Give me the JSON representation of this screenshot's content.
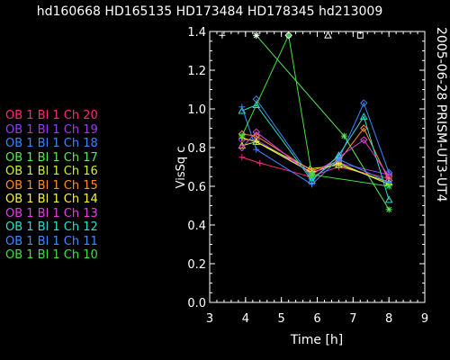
{
  "chart_data": {
    "type": "scatter",
    "title": "hd160668 HD165135 HD173484 HD178345 hd213009",
    "xlabel": "Time [h]",
    "ylabel": "VisSq c",
    "side_label": "2005-06-28 PRISM-UT3-UT4",
    "xlim": [
      3,
      9
    ],
    "ylim": [
      0,
      1.4
    ],
    "xticks": [
      "3",
      "4",
      "5",
      "6",
      "7",
      "8",
      "9"
    ],
    "yticks": [
      "0.0",
      "0.2",
      "0.4",
      "0.6",
      "0.8",
      "1.0",
      "1.2",
      "1.4"
    ],
    "grid": false,
    "legend_position": "left",
    "legend": [
      {
        "label": "OB 1 Bl 1 Ch 20",
        "color": "#ff2a78"
      },
      {
        "label": "OB 1 Bl 1 Ch 19",
        "color": "#9a3cf0"
      },
      {
        "label": "OB 1 Bl 1 Ch 18",
        "color": "#3a86ff"
      },
      {
        "label": "OB 1 Bl 1 Ch 17",
        "color": "#5ce65c"
      },
      {
        "label": "OB 1 Bl 1 Ch 16",
        "color": "#c8f03c"
      },
      {
        "label": "OB 1 Bl 1 Ch 15",
        "color": "#ff8c2a"
      },
      {
        "label": "OB 1 Bl 1 Ch 14",
        "color": "#f5f532"
      },
      {
        "label": "OB 1 Bl 1 Ch 13",
        "color": "#e040e0"
      },
      {
        "label": "OB 1 Bl 1 Ch 12",
        "color": "#2ae0c8"
      },
      {
        "label": "OB 1 Bl 1 Ch 11",
        "color": "#3c8cff"
      },
      {
        "label": "OB 1 Bl 1 Ch 10",
        "color": "#40e040"
      }
    ],
    "top_markers": [
      {
        "x": 3.35,
        "y": 1.38,
        "symbol": "+",
        "color": "#ffffff"
      },
      {
        "x": 4.3,
        "y": 1.38,
        "symbol": "*",
        "color": "#ffffff"
      },
      {
        "x": 5.2,
        "y": 1.38,
        "symbol": "diamond",
        "color": "#ffffff"
      },
      {
        "x": 6.3,
        "y": 1.38,
        "symbol": "triangle",
        "color": "#ffffff"
      },
      {
        "x": 7.2,
        "y": 1.38,
        "symbol": "square",
        "color": "#ffffff"
      }
    ],
    "series": [
      {
        "color": "#ff2a78",
        "symbol": "+",
        "x": [
          3.9,
          4.4,
          5.8,
          6.6,
          8.0
        ],
        "y": [
          0.75,
          0.72,
          0.65,
          0.7,
          0.64
        ]
      },
      {
        "color": "#9a3cf0",
        "symbol": "diamond",
        "x": [
          3.9,
          4.3,
          5.85,
          6.6,
          8.0
        ],
        "y": [
          0.84,
          0.84,
          0.67,
          0.72,
          0.66
        ]
      },
      {
        "color": "#3a86ff",
        "symbol": "diamond",
        "x": [
          4.3,
          5.85,
          6.6,
          7.3,
          8.0
        ],
        "y": [
          1.05,
          0.64,
          0.74,
          1.03,
          0.67
        ]
      },
      {
        "color": "#5ce65c",
        "symbol": "*",
        "x": [
          4.3,
          6.75,
          8.0
        ],
        "y": [
          1.38,
          0.86,
          0.48
        ]
      },
      {
        "color": "#c8f03c",
        "symbol": "triangle",
        "x": [
          3.9,
          4.3,
          5.8,
          6.6,
          8.0
        ],
        "y": [
          0.81,
          0.83,
          0.69,
          0.71,
          0.62
        ]
      },
      {
        "color": "#ff8c2a",
        "symbol": "diamond",
        "x": [
          3.9,
          4.3,
          5.85,
          6.6,
          7.3,
          8.0
        ],
        "y": [
          0.87,
          0.86,
          0.68,
          0.73,
          0.9,
          0.63
        ]
      },
      {
        "color": "#f5f532",
        "symbol": "+",
        "x": [
          3.9,
          4.3,
          5.85,
          6.6,
          8.0
        ],
        "y": [
          0.85,
          0.83,
          0.67,
          0.72,
          0.61
        ]
      },
      {
        "color": "#e040e0",
        "symbol": "diamond",
        "x": [
          3.9,
          4.3,
          5.85,
          6.6,
          7.3,
          8.0
        ],
        "y": [
          0.8,
          0.88,
          0.66,
          0.75,
          0.84,
          0.65
        ]
      },
      {
        "color": "#2ae0c8",
        "symbol": "triangle",
        "x": [
          3.9,
          4.3,
          5.85,
          6.6,
          7.3,
          8.0
        ],
        "y": [
          0.99,
          1.02,
          0.63,
          0.76,
          0.96,
          0.53
        ]
      },
      {
        "color": "#3c8cff",
        "symbol": "+",
        "x": [
          3.9,
          4.3,
          5.85,
          6.6,
          8.0
        ],
        "y": [
          1.01,
          0.79,
          0.61,
          0.74,
          0.62
        ]
      },
      {
        "color": "#40e040",
        "symbol": "*",
        "x": [
          3.9,
          5.2,
          5.85,
          8.0
        ],
        "y": [
          0.86,
          1.38,
          0.66,
          0.6
        ]
      }
    ]
  }
}
